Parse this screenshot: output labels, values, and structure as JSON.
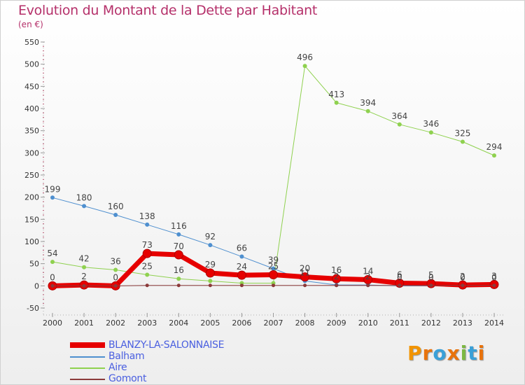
{
  "title": "Evolution du Montant de la Dette par Habitant",
  "subtitle": "(en €)",
  "brand": {
    "text": "Proxiti",
    "letter_colors": [
      "#f29400",
      "#e8730c",
      "#3aa0d8",
      "#e8730c",
      "#7cb842",
      "#3aa0d8",
      "#e8730c"
    ]
  },
  "chart_data": {
    "type": "line",
    "x": [
      "2000",
      "2001",
      "2002",
      "2003",
      "2004",
      "2005",
      "2006",
      "2007",
      "2008",
      "2009",
      "2010",
      "2011",
      "2012",
      "2013",
      "2014"
    ],
    "ylim": [
      -50,
      550
    ],
    "yticks": [
      -50,
      0,
      50,
      100,
      150,
      200,
      250,
      300,
      350,
      400,
      450,
      500,
      550
    ],
    "ytick_labels": [
      "-50",
      "0",
      "50",
      "100",
      "150",
      "200",
      "250",
      "300",
      "350",
      "400",
      "450",
      "500",
      "550"
    ],
    "series": [
      {
        "name": "BLANZY-LA-SALONNAISE",
        "color": "#e60000",
        "values": [
          0,
          2,
          0,
          73,
          70,
          29,
          24,
          25,
          20,
          16,
          14,
          6,
          5,
          2,
          3
        ],
        "labels": [
          "0",
          "2",
          "0",
          "73",
          "70",
          "29",
          "24",
          "25",
          "20",
          "16",
          "14",
          "6",
          "5",
          "2",
          "3"
        ]
      },
      {
        "name": "Balham",
        "color": "#4e8fcf",
        "values": [
          199,
          180,
          160,
          138,
          116,
          92,
          66,
          39,
          11,
          2,
          2,
          0,
          0,
          0,
          0
        ],
        "labels": [
          "199",
          "180",
          "160",
          "138",
          "116",
          "92",
          "66",
          "39",
          "11",
          "2",
          "2",
          "0",
          "0",
          "0",
          "0"
        ]
      },
      {
        "name": "Aire",
        "color": "#8fd14f",
        "values": [
          54,
          42,
          36,
          25,
          16,
          11,
          6,
          6,
          496,
          413,
          394,
          364,
          346,
          325,
          294
        ],
        "labels": [
          "54",
          "42",
          "36",
          "25",
          "16",
          "",
          "",
          "",
          "496",
          "413",
          "394",
          "364",
          "346",
          "325",
          "294"
        ]
      },
      {
        "name": "Gomont",
        "color": "#8b3a3a",
        "values": [
          0,
          0,
          0,
          1,
          1,
          1,
          1,
          1,
          1,
          1,
          1,
          1,
          1,
          1,
          1
        ],
        "labels": []
      }
    ]
  }
}
